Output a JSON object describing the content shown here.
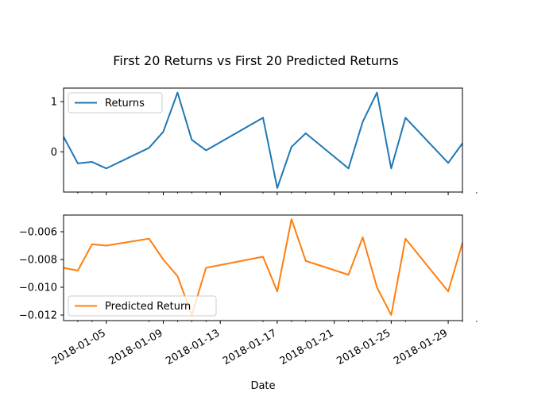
{
  "chart_data": {
    "type": "line",
    "title": "First 20 Returns vs First 20 Predicted Returns",
    "xlabel": "Date",
    "x_tick_labels": [
      "2018-01-05",
      "2018-01-09",
      "2018-01-13",
      "2018-01-17",
      "2018-01-21",
      "2018-01-25",
      "2018-01-29"
    ],
    "dates": [
      "2018-01-03",
      "2018-01-04",
      "2018-01-05",
      "2018-01-08",
      "2018-01-09",
      "2018-01-10",
      "2018-01-11",
      "2018-01-12",
      "2018-01-16",
      "2018-01-17",
      "2018-01-18",
      "2018-01-19",
      "2018-01-22",
      "2018-01-23",
      "2018-01-24",
      "2018-01-25",
      "2018-01-26",
      "2018-01-29",
      "2018-01-30",
      "2018-01-31"
    ],
    "panels": [
      {
        "series": [
          {
            "name": "Returns",
            "color": "#1f77b4",
            "x": [
              "2018-01-02",
              "2018-01-03",
              "2018-01-04",
              "2018-01-05",
              "2018-01-08",
              "2018-01-09",
              "2018-01-10",
              "2018-01-11",
              "2018-01-12",
              "2018-01-16",
              "2018-01-17",
              "2018-01-18",
              "2018-01-19",
              "2018-01-22",
              "2018-01-23",
              "2018-01-24",
              "2018-01-25",
              "2018-01-26",
              "2018-01-29",
              "2018-01-30"
            ],
            "values": [
              0.3,
              -0.23,
              -0.2,
              -0.33,
              0.08,
              0.4,
              1.18,
              0.24,
              0.03,
              0.68,
              -0.72,
              0.1,
              0.37,
              -0.33,
              0.6,
              1.18,
              -0.33,
              0.68,
              -0.22,
              0.17
            ]
          }
        ],
        "yticks": [
          0,
          1
        ],
        "ytick_labels": [
          "0",
          "1"
        ],
        "ylim": [
          -0.8,
          1.27
        ],
        "legend": "upper left"
      },
      {
        "series": [
          {
            "name": "Predicted Return",
            "color": "#ff7f0e",
            "x": [
              "2018-01-02",
              "2018-01-03",
              "2018-01-04",
              "2018-01-05",
              "2018-01-08",
              "2018-01-09",
              "2018-01-10",
              "2018-01-11",
              "2018-01-12",
              "2018-01-16",
              "2018-01-17",
              "2018-01-18",
              "2018-01-19",
              "2018-01-22",
              "2018-01-23",
              "2018-01-24",
              "2018-01-25",
              "2018-01-26",
              "2018-01-29",
              "2018-01-30"
            ],
            "values": [
              -0.0086,
              -0.0088,
              -0.0069,
              -0.007,
              -0.0065,
              -0.008,
              -0.0092,
              -0.012,
              -0.0086,
              -0.0078,
              -0.0103,
              -0.0051,
              -0.0081,
              -0.0091,
              -0.0064,
              -0.01,
              -0.012,
              -0.0065,
              -0.0103,
              -0.0068
            ]
          }
        ],
        "yticks": [
          -0.012,
          -0.01,
          -0.008,
          -0.006
        ],
        "ytick_labels": [
          "−0.012",
          "−0.010",
          "−0.008",
          "−0.006"
        ],
        "ylim": [
          -0.0124,
          -0.0048
        ],
        "legend": "lower left"
      }
    ],
    "xlim": [
      "2018-01-02",
      "2018-01-30"
    ]
  }
}
